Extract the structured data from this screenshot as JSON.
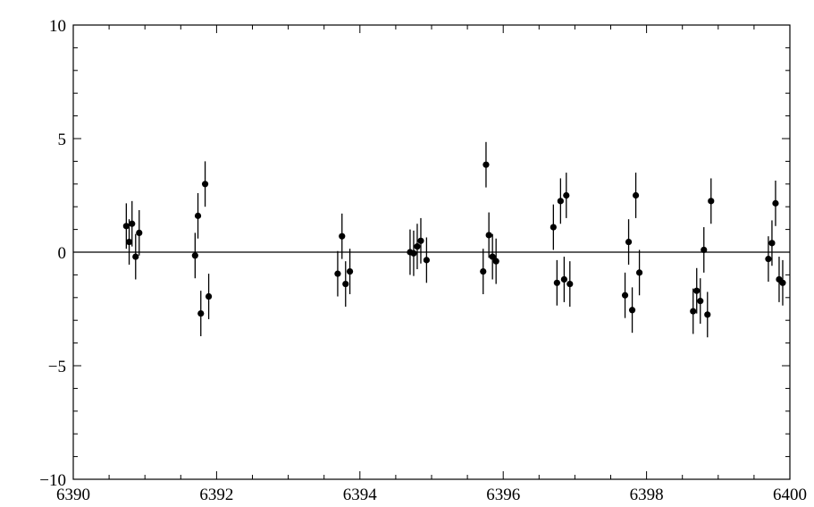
{
  "chart_data": {
    "type": "scatter",
    "title": "",
    "xlabel": "",
    "ylabel": "",
    "xlim": [
      6390,
      6400
    ],
    "ylim": [
      -10,
      10
    ],
    "x_ticks": [
      6390,
      6392,
      6394,
      6396,
      6398,
      6400
    ],
    "y_ticks": [
      -10,
      -5,
      0,
      5,
      10
    ],
    "x_tick_labels": [
      "6390",
      "6392",
      "6394",
      "6396",
      "6398",
      "6400"
    ],
    "y_tick_labels": [
      "−10",
      "−5",
      "0",
      "5",
      "10"
    ],
    "x_minor_step": 0.5,
    "y_minor_step": 1,
    "grid": false,
    "reference_line_y": 0,
    "error_bar_halfwidth": 1.0,
    "marker_color": "#000000",
    "series": [
      {
        "points": [
          {
            "x": 6390.74,
            "y": 1.15
          },
          {
            "x": 6390.78,
            "y": 0.45
          },
          {
            "x": 6390.82,
            "y": 1.25
          },
          {
            "x": 6390.87,
            "y": -0.2
          },
          {
            "x": 6390.92,
            "y": 0.85
          },
          {
            "x": 6391.7,
            "y": -0.15
          },
          {
            "x": 6391.74,
            "y": 1.6
          },
          {
            "x": 6391.78,
            "y": -2.7
          },
          {
            "x": 6391.84,
            "y": 3.0
          },
          {
            "x": 6391.89,
            "y": -1.95
          },
          {
            "x": 6393.69,
            "y": -0.95
          },
          {
            "x": 6393.75,
            "y": 0.7
          },
          {
            "x": 6393.8,
            "y": -1.4
          },
          {
            "x": 6393.86,
            "y": -0.85
          },
          {
            "x": 6394.7,
            "y": 0.0
          },
          {
            "x": 6394.75,
            "y": -0.05
          },
          {
            "x": 6394.8,
            "y": 0.25
          },
          {
            "x": 6394.85,
            "y": 0.5
          },
          {
            "x": 6394.93,
            "y": -0.35
          },
          {
            "x": 6395.72,
            "y": -0.85
          },
          {
            "x": 6395.76,
            "y": 3.85
          },
          {
            "x": 6395.8,
            "y": 0.75
          },
          {
            "x": 6395.85,
            "y": -0.2
          },
          {
            "x": 6395.9,
            "y": -0.4
          },
          {
            "x": 6396.7,
            "y": 1.1
          },
          {
            "x": 6396.75,
            "y": -1.35
          },
          {
            "x": 6396.8,
            "y": 2.25
          },
          {
            "x": 6396.85,
            "y": -1.2
          },
          {
            "x": 6396.88,
            "y": 2.5
          },
          {
            "x": 6396.93,
            "y": -1.4
          },
          {
            "x": 6397.7,
            "y": -1.9
          },
          {
            "x": 6397.75,
            "y": 0.45
          },
          {
            "x": 6397.8,
            "y": -2.55
          },
          {
            "x": 6397.85,
            "y": 2.5
          },
          {
            "x": 6397.9,
            "y": -0.9
          },
          {
            "x": 6398.65,
            "y": -2.6
          },
          {
            "x": 6398.7,
            "y": -1.7
          },
          {
            "x": 6398.75,
            "y": -2.15
          },
          {
            "x": 6398.8,
            "y": 0.1
          },
          {
            "x": 6398.85,
            "y": -2.75
          },
          {
            "x": 6398.9,
            "y": 2.25
          },
          {
            "x": 6399.7,
            "y": -0.3
          },
          {
            "x": 6399.75,
            "y": 0.4
          },
          {
            "x": 6399.8,
            "y": 2.15
          },
          {
            "x": 6399.85,
            "y": -1.2
          },
          {
            "x": 6399.9,
            "y": -1.35
          }
        ]
      }
    ]
  }
}
